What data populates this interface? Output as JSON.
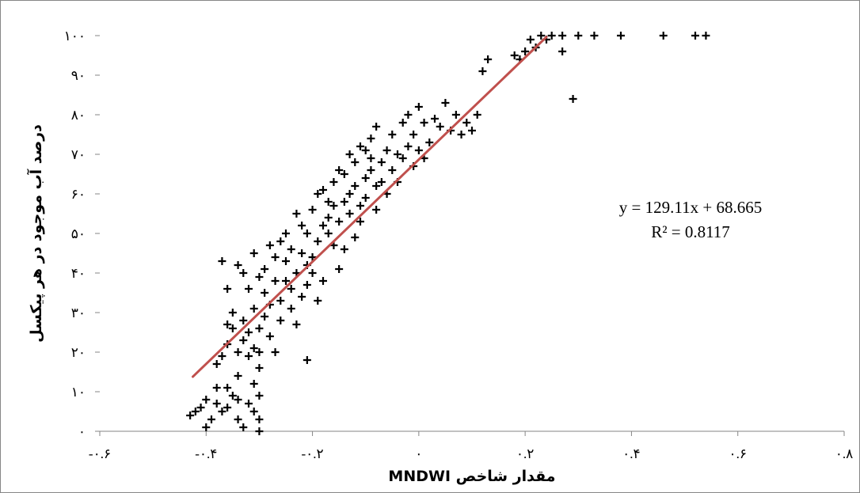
{
  "chart_data": {
    "type": "scatter",
    "title": "",
    "xlabel": "مقدار شاخص MNDWI",
    "ylabel": "درصد آب موجود در هر پیکسل",
    "xlim": [
      -0.6,
      0.8
    ],
    "ylim": [
      0,
      100
    ],
    "x_ticks": [
      -0.6,
      -0.4,
      -0.2,
      0,
      0.2,
      0.4,
      0.6,
      0.8
    ],
    "x_tick_labels": [
      "-۰.۶",
      "-۰.۴",
      "-۰.۲",
      "۰",
      "۰.۲",
      "۰.۴",
      "۰.۶",
      "۰.۸"
    ],
    "y_ticks": [
      0,
      10,
      20,
      30,
      40,
      50,
      60,
      70,
      80,
      90,
      100
    ],
    "y_tick_labels": [
      "۰",
      "۱۰",
      "۲۰",
      "۳۰",
      "۴۰",
      "۵۰",
      "۶۰",
      "۷۰",
      "۸۰",
      "۹۰",
      "۱۰۰"
    ],
    "grid": false,
    "legend": "none",
    "colors": {
      "points": "#000000",
      "trendline": "#c0504d"
    },
    "trendline": {
      "slope": 129.11,
      "intercept": 68.665,
      "x_range": [
        -0.425,
        0.24
      ],
      "equation": "y = 129.11x + 68.665",
      "r_squared": "R² = 0.8117"
    },
    "points": [
      [
        -0.43,
        4
      ],
      [
        -0.42,
        5
      ],
      [
        -0.41,
        6
      ],
      [
        -0.4,
        8
      ],
      [
        -0.4,
        1
      ],
      [
        -0.39,
        3
      ],
      [
        -0.38,
        7
      ],
      [
        -0.38,
        11
      ],
      [
        -0.37,
        5
      ],
      [
        -0.36,
        6
      ],
      [
        -0.36,
        11
      ],
      [
        -0.35,
        9
      ],
      [
        -0.34,
        3
      ],
      [
        -0.34,
        8
      ],
      [
        -0.33,
        1
      ],
      [
        -0.32,
        7
      ],
      [
        -0.31,
        12
      ],
      [
        -0.31,
        5
      ],
      [
        -0.3,
        9
      ],
      [
        -0.3,
        3
      ],
      [
        -0.3,
        0
      ],
      [
        -0.38,
        17
      ],
      [
        -0.37,
        19
      ],
      [
        -0.36,
        22
      ],
      [
        -0.36,
        27
      ],
      [
        -0.35,
        26
      ],
      [
        -0.34,
        14
      ],
      [
        -0.34,
        20
      ],
      [
        -0.33,
        23
      ],
      [
        -0.33,
        28
      ],
      [
        -0.32,
        19
      ],
      [
        -0.32,
        25
      ],
      [
        -0.31,
        21
      ],
      [
        -0.31,
        31
      ],
      [
        -0.3,
        20
      ],
      [
        -0.3,
        26
      ],
      [
        -0.3,
        16
      ],
      [
        -0.29,
        29
      ],
      [
        -0.29,
        35
      ],
      [
        -0.28,
        24
      ],
      [
        -0.28,
        32
      ],
      [
        -0.27,
        20
      ],
      [
        -0.27,
        38
      ],
      [
        -0.26,
        28
      ],
      [
        -0.26,
        33
      ],
      [
        -0.25,
        43
      ],
      [
        -0.25,
        38
      ],
      [
        -0.24,
        31
      ],
      [
        -0.24,
        36
      ],
      [
        -0.23,
        40
      ],
      [
        -0.23,
        27
      ],
      [
        -0.22,
        34
      ],
      [
        -0.22,
        45
      ],
      [
        -0.21,
        18
      ],
      [
        -0.21,
        37
      ],
      [
        -0.21,
        42
      ],
      [
        -0.2,
        44
      ],
      [
        -0.2,
        40
      ],
      [
        -0.19,
        33
      ],
      [
        -0.19,
        48
      ],
      [
        -0.18,
        38
      ],
      [
        -0.18,
        52
      ],
      [
        -0.17,
        50
      ],
      [
        -0.17,
        54
      ],
      [
        -0.16,
        47
      ],
      [
        -0.16,
        57
      ],
      [
        -0.15,
        41
      ],
      [
        -0.15,
        53
      ],
      [
        -0.14,
        58
      ],
      [
        -0.14,
        46
      ],
      [
        -0.13,
        55
      ],
      [
        -0.13,
        60
      ],
      [
        -0.12,
        49
      ],
      [
        -0.12,
        62
      ],
      [
        -0.11,
        53
      ],
      [
        -0.11,
        57
      ],
      [
        -0.1,
        64
      ],
      [
        -0.1,
        59
      ],
      [
        -0.09,
        66
      ],
      [
        -0.09,
        69
      ],
      [
        -0.08,
        62
      ],
      [
        -0.08,
        56
      ],
      [
        -0.07,
        68
      ],
      [
        -0.07,
        63
      ],
      [
        -0.06,
        71
      ],
      [
        -0.06,
        60
      ],
      [
        -0.05,
        66
      ],
      [
        -0.05,
        75
      ],
      [
        -0.04,
        70
      ],
      [
        -0.04,
        63
      ],
      [
        -0.03,
        69
      ],
      [
        -0.03,
        78
      ],
      [
        -0.02,
        72
      ],
      [
        -0.02,
        80
      ],
      [
        -0.01,
        67
      ],
      [
        -0.01,
        75
      ],
      [
        0,
        82
      ],
      [
        0,
        71
      ],
      [
        0.01,
        78
      ],
      [
        0.01,
        69
      ],
      [
        0.02,
        73
      ],
      [
        0.03,
        79
      ],
      [
        0.04,
        77
      ],
      [
        0.05,
        83
      ],
      [
        0.06,
        76
      ],
      [
        0.07,
        80
      ],
      [
        0.08,
        75
      ],
      [
        0.09,
        78
      ],
      [
        0.1,
        76
      ],
      [
        0.11,
        80
      ],
      [
        -0.37,
        43
      ],
      [
        -0.36,
        36
      ],
      [
        -0.35,
        30
      ],
      [
        -0.34,
        42
      ],
      [
        -0.33,
        40
      ],
      [
        -0.32,
        36
      ],
      [
        -0.31,
        45
      ],
      [
        -0.3,
        39
      ],
      [
        -0.29,
        41
      ],
      [
        -0.28,
        47
      ],
      [
        -0.27,
        44
      ],
      [
        -0.26,
        48
      ],
      [
        -0.25,
        50
      ],
      [
        -0.24,
        46
      ],
      [
        -0.23,
        55
      ],
      [
        -0.22,
        52
      ],
      [
        -0.21,
        50
      ],
      [
        -0.2,
        56
      ],
      [
        -0.19,
        60
      ],
      [
        -0.18,
        61
      ],
      [
        -0.17,
        58
      ],
      [
        -0.16,
        63
      ],
      [
        -0.15,
        66
      ],
      [
        -0.14,
        65
      ],
      [
        -0.13,
        70
      ],
      [
        -0.12,
        68
      ],
      [
        -0.11,
        72
      ],
      [
        -0.1,
        71
      ],
      [
        -0.09,
        74
      ],
      [
        -0.08,
        77
      ],
      [
        0.12,
        91
      ],
      [
        0.13,
        94
      ],
      [
        0.18,
        95
      ],
      [
        0.19,
        94
      ],
      [
        0.2,
        96
      ],
      [
        0.21,
        99
      ],
      [
        0.22,
        97
      ],
      [
        0.23,
        100
      ],
      [
        0.24,
        99
      ],
      [
        0.25,
        100
      ],
      [
        0.27,
        100
      ],
      [
        0.27,
        96
      ],
      [
        0.3,
        100
      ],
      [
        0.33,
        100
      ],
      [
        0.38,
        100
      ],
      [
        0.46,
        100
      ],
      [
        0.52,
        100
      ],
      [
        0.54,
        100
      ],
      [
        0.29,
        84
      ]
    ]
  }
}
